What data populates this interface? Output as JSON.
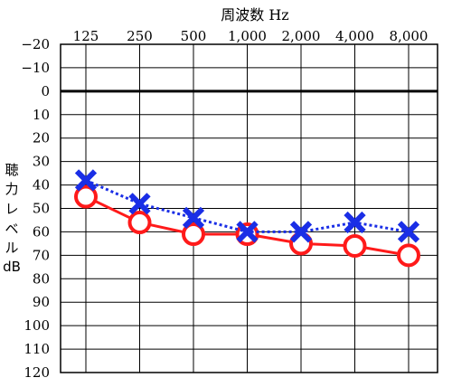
{
  "chart_data": {
    "type": "line",
    "title": "周波数 Hz",
    "xlabel": "周波数 Hz",
    "ylabel_lines": [
      "聴",
      "力",
      "レ",
      "ベ",
      "ル",
      "dB"
    ],
    "categories": [
      "125",
      "250",
      "500",
      "1,000",
      "2,000",
      "4,000",
      "8,000"
    ],
    "y_ticks": [
      "−20",
      "−10",
      "0",
      "10",
      "20",
      "30",
      "40",
      "50",
      "60",
      "70",
      "80",
      "90",
      "100",
      "110",
      "120"
    ],
    "y_tick_values": [
      -20,
      -10,
      0,
      10,
      20,
      30,
      40,
      50,
      60,
      70,
      80,
      90,
      100,
      110,
      120
    ],
    "ylim": [
      -20,
      120
    ],
    "y_inverted": true,
    "grid": true,
    "series": [
      {
        "marker": "circle",
        "line_style": "solid",
        "color": "#ff1a1a",
        "values": [
          45,
          56,
          61,
          61,
          65,
          66,
          70
        ]
      },
      {
        "marker": "cross",
        "line_style": "dotted",
        "color": "#1a2ee6",
        "values": [
          38,
          48,
          54,
          60,
          60,
          56,
          60
        ]
      }
    ]
  }
}
